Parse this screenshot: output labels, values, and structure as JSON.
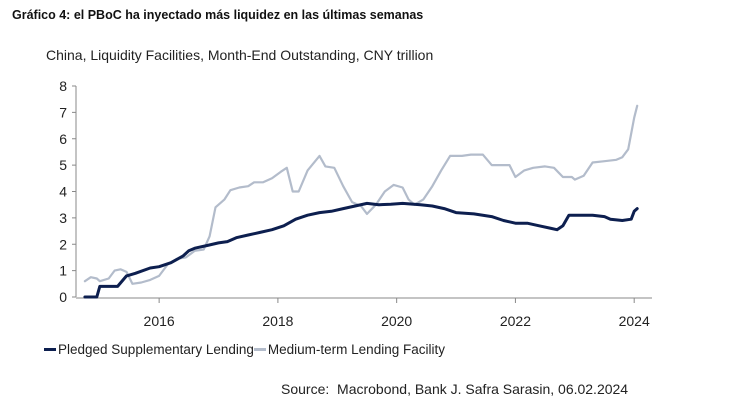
{
  "header": {
    "title": "Gráfico 4: el PBoC ha inyectado más liquidez en las últimas semanas"
  },
  "source": "Source:  Macrobond, Bank J. Safra Sarasin, 06.02.2024",
  "colors": {
    "pledged": "#0d1f4f",
    "mlf": "#b3bccb",
    "axis": "#888888"
  },
  "chart_data": {
    "type": "line",
    "title": "China, Liquidity Facilities, Month-End Outstanding, CNY trillion",
    "xlabel": "",
    "ylabel": "",
    "xlim": [
      2014.6,
      2024.3
    ],
    "ylim": [
      0,
      8
    ],
    "x_ticks": [
      2016,
      2018,
      2020,
      2022,
      2024
    ],
    "x_tick_labels": [
      "2016",
      "2018",
      "2020",
      "2022",
      "2024"
    ],
    "y_ticks": [
      0,
      1,
      2,
      3,
      4,
      5,
      6,
      7,
      8
    ],
    "y_tick_labels": [
      "0",
      "1",
      "2",
      "3",
      "4",
      "5",
      "6",
      "7",
      "8"
    ],
    "grid": false,
    "legend_position": "bottom-left",
    "series": [
      {
        "name": "Pledged Supplementary Lending",
        "color": "#0d1f4f",
        "points": [
          [
            2014.75,
            0.0
          ],
          [
            2014.95,
            0.0
          ],
          [
            2015.0,
            0.4
          ],
          [
            2015.3,
            0.4
          ],
          [
            2015.45,
            0.8
          ],
          [
            2015.6,
            0.9
          ],
          [
            2015.85,
            1.1
          ],
          [
            2016.0,
            1.15
          ],
          [
            2016.2,
            1.3
          ],
          [
            2016.4,
            1.55
          ],
          [
            2016.5,
            1.75
          ],
          [
            2016.6,
            1.85
          ],
          [
            2016.8,
            1.95
          ],
          [
            2017.0,
            2.05
          ],
          [
            2017.15,
            2.1
          ],
          [
            2017.3,
            2.25
          ],
          [
            2017.5,
            2.35
          ],
          [
            2017.7,
            2.45
          ],
          [
            2017.9,
            2.55
          ],
          [
            2018.1,
            2.7
          ],
          [
            2018.3,
            2.95
          ],
          [
            2018.5,
            3.1
          ],
          [
            2018.7,
            3.2
          ],
          [
            2018.9,
            3.25
          ],
          [
            2019.1,
            3.35
          ],
          [
            2019.3,
            3.45
          ],
          [
            2019.5,
            3.55
          ],
          [
            2019.7,
            3.5
          ],
          [
            2019.9,
            3.52
          ],
          [
            2020.1,
            3.55
          ],
          [
            2020.4,
            3.5
          ],
          [
            2020.6,
            3.45
          ],
          [
            2020.8,
            3.35
          ],
          [
            2021.0,
            3.2
          ],
          [
            2021.3,
            3.15
          ],
          [
            2021.6,
            3.05
          ],
          [
            2021.8,
            2.9
          ],
          [
            2022.0,
            2.8
          ],
          [
            2022.2,
            2.8
          ],
          [
            2022.4,
            2.7
          ],
          [
            2022.6,
            2.6
          ],
          [
            2022.7,
            2.55
          ],
          [
            2022.8,
            2.7
          ],
          [
            2022.9,
            3.1
          ],
          [
            2023.1,
            3.1
          ],
          [
            2023.3,
            3.1
          ],
          [
            2023.5,
            3.05
          ],
          [
            2023.6,
            2.95
          ],
          [
            2023.8,
            2.9
          ],
          [
            2023.95,
            2.95
          ],
          [
            2024.0,
            3.25
          ],
          [
            2024.05,
            3.35
          ]
        ]
      },
      {
        "name": "Medium-term Lending Facility",
        "color": "#b3bccb",
        "points": [
          [
            2014.75,
            0.6
          ],
          [
            2014.85,
            0.75
          ],
          [
            2014.95,
            0.7
          ],
          [
            2015.0,
            0.6
          ],
          [
            2015.15,
            0.7
          ],
          [
            2015.25,
            1.0
          ],
          [
            2015.35,
            1.05
          ],
          [
            2015.45,
            0.95
          ],
          [
            2015.55,
            0.5
          ],
          [
            2015.7,
            0.55
          ],
          [
            2015.85,
            0.65
          ],
          [
            2016.0,
            0.8
          ],
          [
            2016.15,
            1.25
          ],
          [
            2016.3,
            1.45
          ],
          [
            2016.45,
            1.5
          ],
          [
            2016.6,
            1.75
          ],
          [
            2016.75,
            1.8
          ],
          [
            2016.85,
            2.3
          ],
          [
            2016.95,
            3.4
          ],
          [
            2017.1,
            3.7
          ],
          [
            2017.2,
            4.05
          ],
          [
            2017.35,
            4.15
          ],
          [
            2017.5,
            4.2
          ],
          [
            2017.6,
            4.35
          ],
          [
            2017.75,
            4.35
          ],
          [
            2017.9,
            4.5
          ],
          [
            2018.05,
            4.75
          ],
          [
            2018.15,
            4.9
          ],
          [
            2018.25,
            4.0
          ],
          [
            2018.35,
            4.0
          ],
          [
            2018.5,
            4.8
          ],
          [
            2018.7,
            5.35
          ],
          [
            2018.8,
            4.95
          ],
          [
            2018.95,
            4.9
          ],
          [
            2019.1,
            4.2
          ],
          [
            2019.25,
            3.6
          ],
          [
            2019.4,
            3.45
          ],
          [
            2019.5,
            3.15
          ],
          [
            2019.65,
            3.5
          ],
          [
            2019.8,
            4.0
          ],
          [
            2019.95,
            4.25
          ],
          [
            2020.1,
            4.15
          ],
          [
            2020.2,
            3.7
          ],
          [
            2020.3,
            3.5
          ],
          [
            2020.45,
            3.7
          ],
          [
            2020.6,
            4.2
          ],
          [
            2020.75,
            4.8
          ],
          [
            2020.9,
            5.35
          ],
          [
            2021.1,
            5.35
          ],
          [
            2021.25,
            5.4
          ],
          [
            2021.45,
            5.4
          ],
          [
            2021.6,
            5.0
          ],
          [
            2021.8,
            5.0
          ],
          [
            2021.9,
            5.0
          ],
          [
            2022.0,
            4.55
          ],
          [
            2022.15,
            4.8
          ],
          [
            2022.3,
            4.9
          ],
          [
            2022.5,
            4.95
          ],
          [
            2022.65,
            4.9
          ],
          [
            2022.8,
            4.55
          ],
          [
            2022.95,
            4.55
          ],
          [
            2023.0,
            4.45
          ],
          [
            2023.15,
            4.6
          ],
          [
            2023.3,
            5.1
          ],
          [
            2023.5,
            5.15
          ],
          [
            2023.7,
            5.2
          ],
          [
            2023.8,
            5.3
          ],
          [
            2023.9,
            5.6
          ],
          [
            2023.95,
            6.2
          ],
          [
            2024.0,
            6.8
          ],
          [
            2024.05,
            7.25
          ]
        ]
      }
    ]
  }
}
